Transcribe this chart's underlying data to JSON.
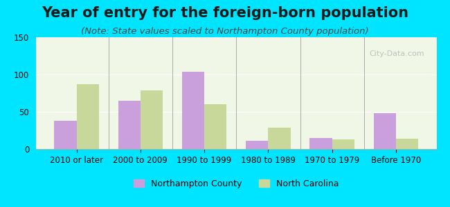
{
  "title": "Year of entry for the foreign-born population",
  "subtitle": "(Note: State values scaled to Northampton County population)",
  "categories": [
    "2010 or later",
    "2000 to 2009",
    "1990 to 1999",
    "1980 to 1989",
    "1970 to 1979",
    "Before 1970"
  ],
  "northampton": [
    38,
    65,
    104,
    11,
    15,
    48
  ],
  "north_carolina": [
    87,
    79,
    60,
    29,
    13,
    14
  ],
  "bar_color_northampton": "#c9a0dc",
  "bar_color_nc": "#c8d89a",
  "background_outer": "#00e5ff",
  "background_inner": "#f0f7e6",
  "ylim": [
    0,
    150
  ],
  "yticks": [
    0,
    50,
    100,
    150
  ],
  "bar_width": 0.35,
  "legend_label_northampton": "Northampton County",
  "legend_label_nc": "North Carolina",
  "title_fontsize": 15,
  "subtitle_fontsize": 9.5,
  "axis_fontsize": 8.5,
  "legend_fontsize": 9
}
